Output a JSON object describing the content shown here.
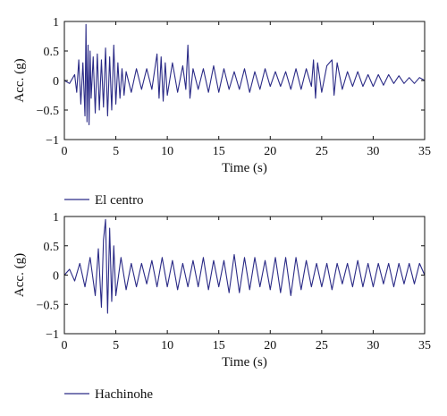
{
  "chart_data": [
    {
      "type": "line",
      "xlabel": "Time (s)",
      "ylabel": "Acc. (g)",
      "xlim": [
        0,
        35
      ],
      "ylim": [
        -1,
        1
      ],
      "xticks": [
        0,
        5,
        10,
        15,
        20,
        25,
        30,
        35
      ],
      "yticks": [
        -1,
        -0.5,
        0,
        0.5,
        1
      ],
      "xtick_labels": [
        "0",
        "5",
        "10",
        "15",
        "20",
        "25",
        "30",
        "35"
      ],
      "ytick_labels": [
        "−1",
        "−0.5",
        "0",
        "0.5",
        "1"
      ],
      "grid": false,
      "legend_position": "below",
      "series": [
        {
          "name": "El centro",
          "color": "#2a2a86",
          "x": [
            0,
            0.5,
            1.0,
            1.2,
            1.4,
            1.6,
            1.8,
            2.0,
            2.1,
            2.2,
            2.3,
            2.4,
            2.5,
            2.6,
            2.8,
            3.0,
            3.2,
            3.4,
            3.6,
            3.8,
            4.0,
            4.2,
            4.4,
            4.6,
            4.8,
            5.0,
            5.2,
            5.4,
            5.6,
            5.8,
            6.0,
            6.5,
            7.0,
            7.5,
            8.0,
            8.5,
            9.0,
            9.2,
            9.4,
            9.6,
            9.8,
            10.0,
            10.5,
            11.0,
            11.5,
            11.8,
            12.0,
            12.2,
            12.5,
            13.0,
            13.5,
            14.0,
            14.5,
            15.0,
            15.5,
            16.0,
            16.5,
            17.0,
            17.5,
            18.0,
            18.5,
            19.0,
            19.5,
            20.0,
            20.5,
            21.0,
            21.5,
            22.0,
            22.5,
            23.0,
            23.5,
            24.0,
            24.2,
            24.4,
            24.6,
            25.0,
            25.5,
            26.0,
            26.2,
            26.5,
            27.0,
            27.5,
            28.0,
            28.5,
            29.0,
            29.5,
            30.0,
            30.5,
            31.0,
            31.5,
            32.0,
            32.5,
            33.0,
            33.5,
            34.0,
            34.5,
            35.0
          ],
          "y": [
            0.0,
            -0.05,
            0.1,
            -0.2,
            0.35,
            -0.4,
            0.3,
            -0.6,
            0.95,
            -0.7,
            0.6,
            -0.75,
            0.5,
            -0.3,
            0.4,
            -0.55,
            0.45,
            -0.5,
            0.35,
            -0.45,
            0.55,
            -0.6,
            0.4,
            -0.5,
            0.6,
            -0.4,
            0.3,
            -0.3,
            0.2,
            -0.25,
            0.15,
            -0.2,
            0.2,
            -0.15,
            0.2,
            -0.15,
            0.45,
            -0.3,
            0.4,
            -0.35,
            0.3,
            -0.25,
            0.3,
            -0.2,
            0.25,
            -0.15,
            0.6,
            -0.3,
            0.2,
            -0.15,
            0.2,
            -0.2,
            0.25,
            -0.2,
            0.2,
            -0.15,
            0.15,
            -0.15,
            0.2,
            -0.2,
            0.15,
            -0.15,
            0.2,
            -0.1,
            0.15,
            -0.1,
            0.15,
            -0.15,
            0.2,
            -0.15,
            0.2,
            -0.1,
            0.35,
            -0.3,
            0.3,
            -0.2,
            0.25,
            0.35,
            -0.25,
            0.3,
            -0.15,
            0.15,
            -0.1,
            0.15,
            -0.1,
            0.1,
            -0.1,
            0.1,
            -0.08,
            0.1,
            -0.05,
            0.08,
            -0.05,
            0.05,
            -0.05,
            0.05,
            0.0
          ]
        }
      ]
    },
    {
      "type": "line",
      "xlabel": "Time (s)",
      "ylabel": "Acc. (g)",
      "xlim": [
        0,
        35
      ],
      "ylim": [
        -1,
        1
      ],
      "xticks": [
        0,
        5,
        10,
        15,
        20,
        25,
        30,
        35
      ],
      "yticks": [
        -1,
        -0.5,
        0,
        0.5,
        1
      ],
      "xtick_labels": [
        "0",
        "5",
        "10",
        "15",
        "20",
        "25",
        "30",
        "35"
      ],
      "ytick_labels": [
        "−1",
        "−0.5",
        "0",
        "0.5",
        "1"
      ],
      "grid": false,
      "legend_position": "below",
      "series": [
        {
          "name": "Hachinohe",
          "color": "#2a2a86",
          "x": [
            0,
            0.5,
            1.0,
            1.5,
            2.0,
            2.5,
            3.0,
            3.3,
            3.6,
            3.8,
            4.0,
            4.2,
            4.4,
            4.6,
            4.8,
            5.0,
            5.5,
            6.0,
            6.5,
            7.0,
            7.5,
            8.0,
            8.5,
            9.0,
            9.5,
            10.0,
            10.5,
            11.0,
            11.5,
            12.0,
            12.5,
            13.0,
            13.5,
            14.0,
            14.5,
            15.0,
            15.5,
            16.0,
            16.5,
            17.0,
            17.5,
            18.0,
            18.5,
            19.0,
            19.5,
            20.0,
            20.5,
            21.0,
            21.5,
            22.0,
            22.5,
            23.0,
            23.5,
            24.0,
            24.5,
            25.0,
            25.5,
            26.0,
            26.5,
            27.0,
            27.5,
            28.0,
            28.5,
            29.0,
            29.5,
            30.0,
            30.5,
            31.0,
            31.5,
            32.0,
            32.5,
            33.0,
            33.5,
            34.0,
            34.5,
            35.0
          ],
          "y": [
            0.0,
            0.1,
            -0.1,
            0.2,
            -0.2,
            0.3,
            -0.35,
            0.45,
            -0.55,
            0.6,
            0.95,
            -0.65,
            0.8,
            -0.45,
            0.5,
            -0.35,
            0.3,
            -0.25,
            0.2,
            -0.2,
            0.2,
            -0.15,
            0.25,
            -0.2,
            0.3,
            -0.2,
            0.25,
            -0.25,
            0.2,
            -0.2,
            0.25,
            -0.2,
            0.3,
            -0.25,
            0.25,
            -0.2,
            0.25,
            -0.3,
            0.35,
            -0.3,
            0.3,
            -0.25,
            0.3,
            -0.2,
            0.25,
            -0.25,
            0.3,
            -0.3,
            0.3,
            -0.35,
            0.3,
            -0.25,
            0.25,
            -0.2,
            0.2,
            -0.2,
            0.2,
            -0.25,
            0.2,
            -0.15,
            0.2,
            -0.2,
            0.25,
            -0.2,
            0.2,
            -0.2,
            0.2,
            -0.15,
            0.2,
            -0.2,
            0.2,
            -0.15,
            0.2,
            -0.15,
            0.2,
            0.0
          ]
        }
      ]
    }
  ]
}
